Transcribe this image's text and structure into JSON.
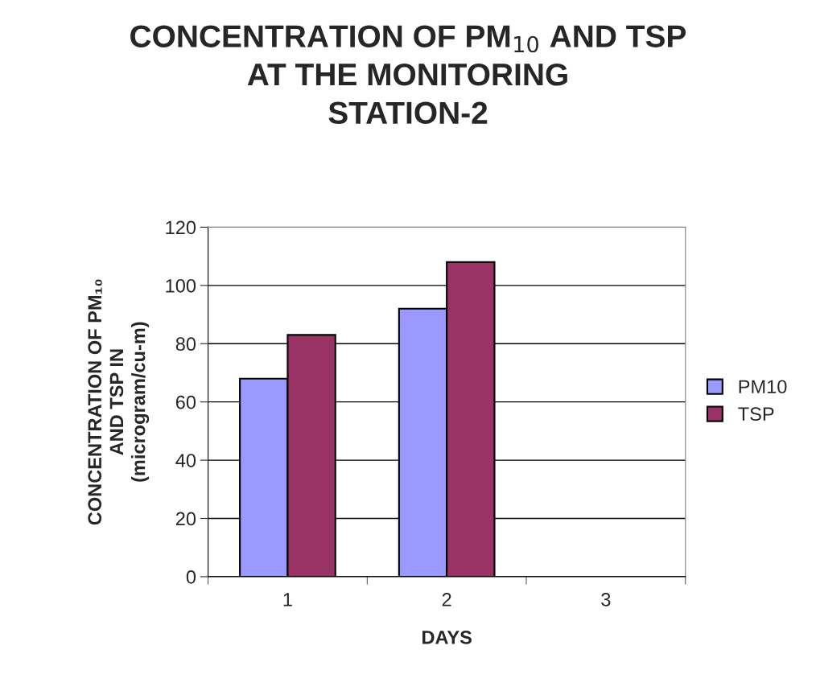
{
  "chart_data": {
    "type": "bar",
    "title": "CONCENTRATION OF PM$_{10}$ AND TSP\nAT THE MONITORING\nSTATION-2",
    "xlabel": "DAYS",
    "ylabel": "CONCENTRATION OF PM₁₀\nAND TSP IN\n(microgram/cu-m)",
    "categories": [
      "1",
      "2",
      "3"
    ],
    "series": [
      {
        "name": "PM10",
        "color": "#9999ff",
        "values": [
          68,
          92,
          null
        ]
      },
      {
        "name": "TSP",
        "color": "#993366",
        "values": [
          83,
          108,
          null
        ]
      }
    ],
    "ylim": [
      0,
      120
    ],
    "yticks": [
      0,
      20,
      40,
      60,
      80,
      100,
      120
    ],
    "grid": "y",
    "legend": "right"
  }
}
